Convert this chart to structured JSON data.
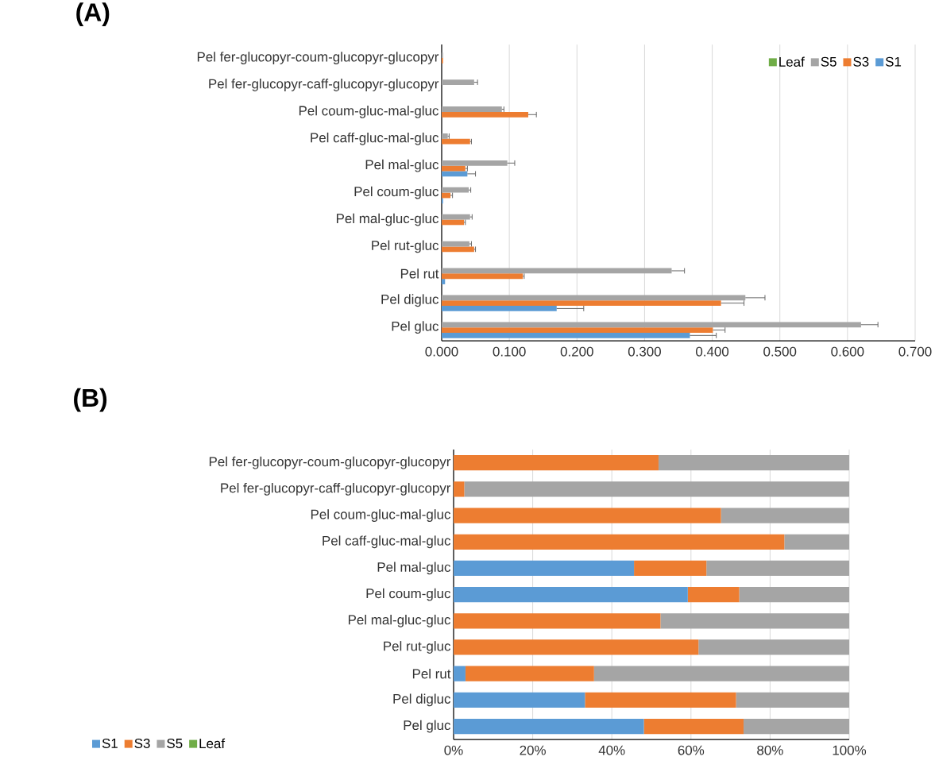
{
  "chart_data": [
    {
      "type": "bar",
      "orientation": "horizontal",
      "title": "(A)",
      "categories": [
        "Pel fer-glucopyr-coum-glucopyr-glucopyr",
        "Pel fer-glucopyr-caff-glucopyr-glucopyr",
        "Pel coum-gluc-mal-gluc",
        "Pel caff-gluc-mal-gluc",
        "Pel mal-gluc",
        "Pel coum-gluc",
        "Pel mal-gluc-gluc",
        "Pel rut-gluc",
        "Pel rut",
        "Pel digluc",
        "Pel gluc"
      ],
      "series": [
        {
          "name": "S1",
          "color": "#5b9bd5",
          "values": [
            0,
            0,
            0,
            0,
            0.038,
            0.002,
            0,
            0,
            0.005,
            0.17,
            0.367
          ],
          "errors": [
            null,
            null,
            null,
            null,
            [
              0.038,
              0.05
            ],
            null,
            null,
            null,
            null,
            [
              0.17,
              0.21
            ],
            [
              0.367,
              0.406
            ]
          ]
        },
        {
          "name": "S3",
          "color": "#ed7d31",
          "values": [
            0.002,
            0,
            0.128,
            0.042,
            0.035,
            0.013,
            0.033,
            0.048,
            0.12,
            0.413,
            0.401
          ],
          "errors": [
            null,
            null,
            [
              0.128,
              0.14
            ],
            [
              0.042,
              0.044
            ],
            [
              0.035,
              0.038
            ],
            [
              0.013,
              0.016
            ],
            [
              0.033,
              0.035
            ],
            [
              0.048,
              0.05
            ],
            [
              0.12,
              0.122
            ],
            [
              0.413,
              0.447
            ],
            [
              0.401,
              0.419
            ]
          ]
        },
        {
          "name": "S5",
          "color": "#a5a5a5",
          "values": [
            0.002,
            0.048,
            0.089,
            0.009,
            0.097,
            0.04,
            0.042,
            0.041,
            0.34,
            0.449,
            0.62
          ],
          "errors": [
            null,
            [
              0.048,
              0.053
            ],
            [
              0.089,
              0.092
            ],
            [
              0.009,
              0.011
            ],
            [
              0.097,
              0.108
            ],
            [
              0.04,
              0.043
            ],
            [
              0.042,
              0.045
            ],
            [
              0.041,
              0.044
            ],
            [
              0.34,
              0.359
            ],
            [
              0.449,
              0.478
            ],
            [
              0.62,
              0.645
            ]
          ]
        },
        {
          "name": "Leaf",
          "color": "#70ad47",
          "values": [
            0,
            0,
            0,
            0,
            0,
            0,
            0,
            0,
            0,
            0,
            0
          ]
        }
      ],
      "xlim": [
        0,
        0.7
      ],
      "xticks": [
        {
          "value": 0,
          "label": "0.000"
        },
        {
          "value": 0.1,
          "label": "0.100"
        },
        {
          "value": 0.2,
          "label": "0.200"
        },
        {
          "value": 0.3,
          "label": "0.300"
        },
        {
          "value": 0.4,
          "label": "0.400"
        },
        {
          "value": 0.5,
          "label": "0.500"
        },
        {
          "value": 0.6,
          "label": "0.600"
        },
        {
          "value": 0.7,
          "label": "0.700"
        }
      ],
      "grid": "x",
      "legend": "top right"
    },
    {
      "type": "bar",
      "orientation": "horizontal",
      "stacked": true,
      "title": "(B)",
      "categories": [
        "Pel fer-glucopyr-coum-glucopyr-glucopyr",
        "Pel fer-glucopyr-caff-glucopyr-glucopyr",
        "Pel coum-gluc-mal-gluc",
        "Pel caff-gluc-mal-gluc",
        "Pel mal-gluc",
        "Pel coum-gluc",
        "Pel mal-gluc-gluc",
        "Pel rut-gluc",
        "Pel rut",
        "Pel digluc",
        "Pel gluc"
      ],
      "series": [
        {
          "name": "S1",
          "color": "#5b9bd5",
          "values": [
            0,
            0,
            0,
            0,
            45.6,
            59.2,
            0,
            0,
            3.0,
            33.2,
            48.1
          ]
        },
        {
          "name": "S3",
          "color": "#ed7d31",
          "values": [
            51.8,
            2.7,
            67.6,
            83.6,
            18.3,
            13.0,
            52.3,
            61.9,
            32.5,
            38.2,
            25.2
          ]
        },
        {
          "name": "S5",
          "color": "#a5a5a5",
          "values": [
            48.2,
            97.3,
            32.4,
            16.4,
            36.1,
            27.8,
            47.7,
            38.1,
            64.5,
            28.6,
            26.7
          ]
        },
        {
          "name": "Leaf",
          "color": "#70ad47",
          "values": [
            0,
            0,
            0,
            0,
            0,
            0,
            0,
            0,
            0,
            0,
            0
          ]
        }
      ],
      "xlim": [
        0,
        100
      ],
      "xticks": [
        {
          "value": 0,
          "label": "0%"
        },
        {
          "value": 20,
          "label": "20%"
        },
        {
          "value": 40,
          "label": "40%"
        },
        {
          "value": 60,
          "label": "60%"
        },
        {
          "value": 80,
          "label": "80%"
        },
        {
          "value": 100,
          "label": "100%"
        }
      ],
      "grid": "x",
      "legend": "bottom left"
    }
  ]
}
